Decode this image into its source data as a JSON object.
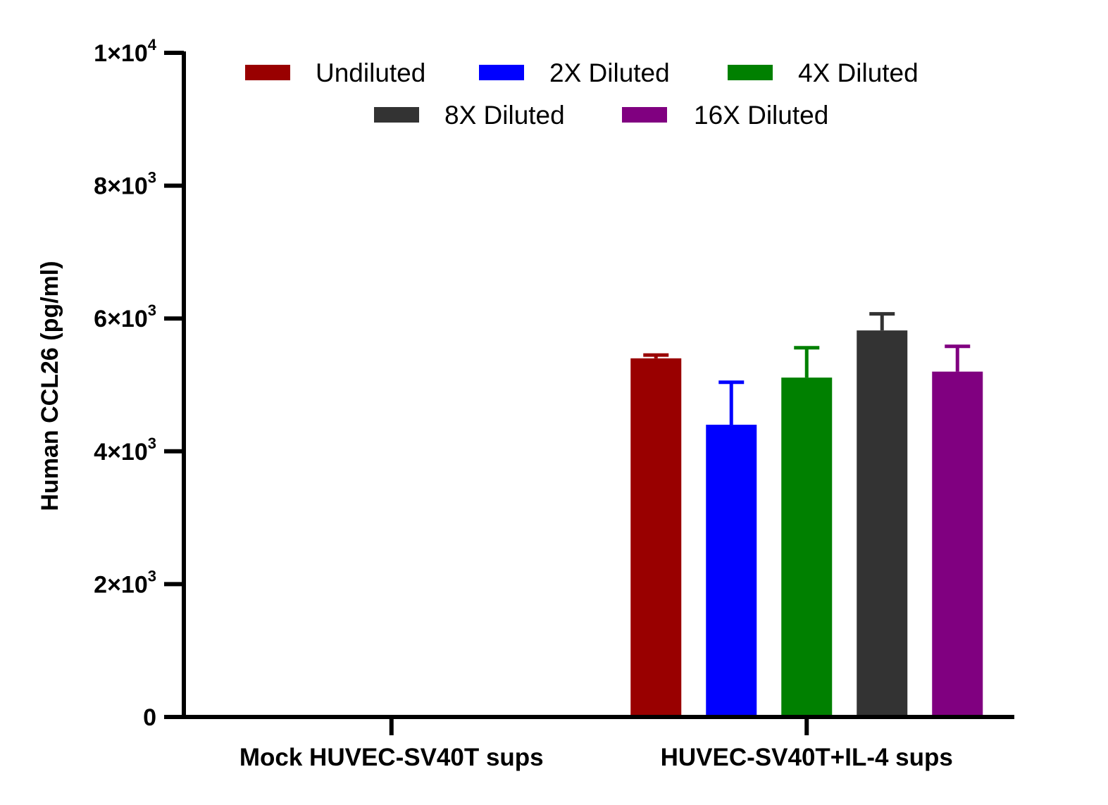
{
  "chart_data": {
    "type": "bar",
    "ylabel": "Human CCL26 (pg/ml)",
    "xlabel": "",
    "ylim": [
      0,
      10000
    ],
    "yticks": [
      {
        "value": 0,
        "base": "0",
        "exp": ""
      },
      {
        "value": 2000,
        "base": "2×10",
        "exp": "3"
      },
      {
        "value": 4000,
        "base": "4×10",
        "exp": "3"
      },
      {
        "value": 6000,
        "base": "6×10",
        "exp": "3"
      },
      {
        "value": 8000,
        "base": "8×10",
        "exp": "3"
      },
      {
        "value": 10000,
        "base": "1×10",
        "exp": "4"
      }
    ],
    "categories": [
      "Mock HUVEC-SV40T sups",
      "HUVEC-SV40T+IL-4 sups"
    ],
    "series": [
      {
        "name": "Undiluted",
        "color": "#990000",
        "values": [
          0,
          5400
        ],
        "errors": [
          0,
          50
        ]
      },
      {
        "name": "2X Diluted",
        "color": "#0000ff",
        "values": [
          0,
          4400
        ],
        "errors": [
          0,
          640
        ]
      },
      {
        "name": "4X Diluted",
        "color": "#008000",
        "values": [
          0,
          5110
        ],
        "errors": [
          0,
          450
        ]
      },
      {
        "name": "8X Diluted",
        "color": "#333333",
        "values": [
          0,
          5820
        ],
        "errors": [
          0,
          250
        ]
      },
      {
        "name": "16X Diluted",
        "color": "#800080",
        "values": [
          0,
          5200
        ],
        "errors": [
          0,
          380
        ]
      }
    ],
    "legend_position": "top"
  }
}
